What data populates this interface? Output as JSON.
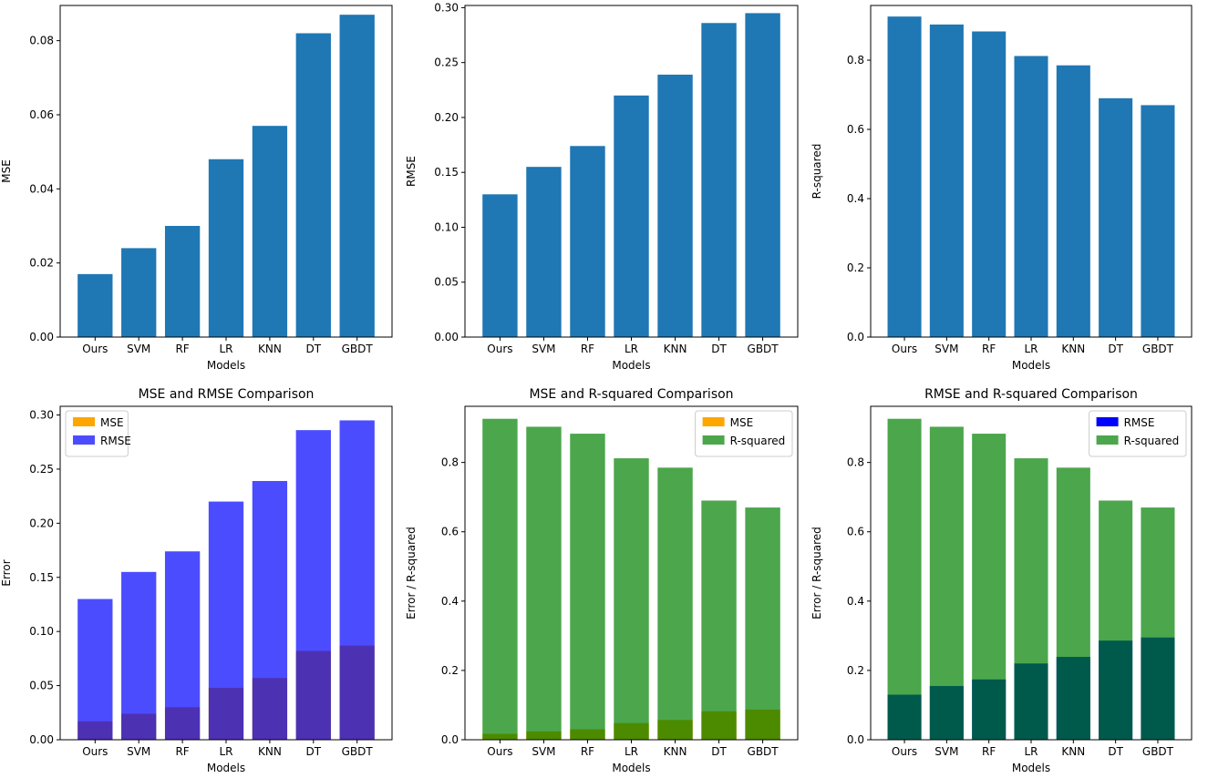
{
  "chart_data": [
    {
      "type": "bar",
      "title": "",
      "xlabel": "Models",
      "ylabel": "MSE",
      "categories": [
        "Ours",
        "SVM",
        "RF",
        "LR",
        "KNN",
        "DT",
        "GBDT"
      ],
      "series": [
        {
          "name": "MSE",
          "values": [
            0.017,
            0.024,
            0.03,
            0.048,
            0.057,
            0.082,
            0.087
          ],
          "color": "#1f77b4",
          "alpha": 1.0
        }
      ],
      "ylim": [
        0,
        0.0895
      ],
      "yticks": [
        0,
        0.02,
        0.04,
        0.06,
        0.08
      ],
      "ytick_labels": [
        "0.00",
        "0.02",
        "0.04",
        "0.06",
        "0.08"
      ],
      "legend": []
    },
    {
      "type": "bar",
      "title": "",
      "xlabel": "Models",
      "ylabel": "RMSE",
      "categories": [
        "Ours",
        "SVM",
        "RF",
        "LR",
        "KNN",
        "DT",
        "GBDT"
      ],
      "series": [
        {
          "name": "RMSE",
          "values": [
            0.13,
            0.155,
            0.174,
            0.22,
            0.239,
            0.286,
            0.295
          ],
          "color": "#1f77b4",
          "alpha": 1.0
        }
      ],
      "ylim": [
        0,
        0.302
      ],
      "yticks": [
        0,
        0.05,
        0.1,
        0.15,
        0.2,
        0.25,
        0.3
      ],
      "ytick_labels": [
        "0.00",
        "0.05",
        "0.10",
        "0.15",
        "0.20",
        "0.25",
        "0.30"
      ],
      "legend": []
    },
    {
      "type": "bar",
      "title": "",
      "xlabel": "Models",
      "ylabel": "R-squared",
      "categories": [
        "Ours",
        "SVM",
        "RF",
        "LR",
        "KNN",
        "DT",
        "GBDT"
      ],
      "series": [
        {
          "name": "R-squared",
          "values": [
            0.926,
            0.903,
            0.883,
            0.812,
            0.785,
            0.69,
            0.67
          ],
          "color": "#1f77b4",
          "alpha": 1.0
        }
      ],
      "ylim": [
        0,
        0.958
      ],
      "yticks": [
        0,
        0.2,
        0.4,
        0.6,
        0.8
      ],
      "ytick_labels": [
        "0.0",
        "0.2",
        "0.4",
        "0.6",
        "0.8"
      ],
      "legend": []
    },
    {
      "type": "bar",
      "title": "MSE and RMSE Comparison",
      "xlabel": "Models",
      "ylabel": "Error",
      "categories": [
        "Ours",
        "SVM",
        "RF",
        "LR",
        "KNN",
        "DT",
        "GBDT"
      ],
      "series": [
        {
          "name": "MSE",
          "values": [
            0.017,
            0.024,
            0.03,
            0.048,
            0.057,
            0.082,
            0.087
          ],
          "color": "#ffa500",
          "alpha": 1.0
        },
        {
          "name": "RMSE",
          "values": [
            0.13,
            0.155,
            0.174,
            0.22,
            0.239,
            0.286,
            0.295
          ],
          "color": "#0000ff",
          "alpha": 0.7
        }
      ],
      "ylim": [
        0,
        0.308
      ],
      "yticks": [
        0,
        0.05,
        0.1,
        0.15,
        0.2,
        0.25,
        0.3
      ],
      "ytick_labels": [
        "0.00",
        "0.05",
        "0.10",
        "0.15",
        "0.20",
        "0.25",
        "0.30"
      ],
      "legend": [
        "MSE",
        "RMSE"
      ],
      "legend_loc": "upper-left"
    },
    {
      "type": "bar",
      "title": "MSE and R-squared Comparison",
      "xlabel": "Models",
      "ylabel": "Error / R-squared",
      "categories": [
        "Ours",
        "SVM",
        "RF",
        "LR",
        "KNN",
        "DT",
        "GBDT"
      ],
      "series": [
        {
          "name": "MSE",
          "values": [
            0.017,
            0.024,
            0.03,
            0.048,
            0.057,
            0.082,
            0.087
          ],
          "color": "#ffa500",
          "alpha": 1.0
        },
        {
          "name": "R-squared",
          "values": [
            0.926,
            0.903,
            0.883,
            0.812,
            0.785,
            0.69,
            0.67
          ],
          "color": "#008000",
          "alpha": 0.7
        }
      ],
      "ylim": [
        0,
        0.962
      ],
      "yticks": [
        0,
        0.2,
        0.4,
        0.6,
        0.8
      ],
      "ytick_labels": [
        "0.0",
        "0.2",
        "0.4",
        "0.6",
        "0.8"
      ],
      "legend": [
        "MSE",
        "R-squared"
      ],
      "legend_loc": "upper-right"
    },
    {
      "type": "bar",
      "title": "RMSE and R-squared Comparison",
      "xlabel": "Models",
      "ylabel": "Error / R-squared",
      "categories": [
        "Ours",
        "SVM",
        "RF",
        "LR",
        "KNN",
        "DT",
        "GBDT"
      ],
      "series": [
        {
          "name": "RMSE",
          "values": [
            0.13,
            0.155,
            0.174,
            0.22,
            0.239,
            0.286,
            0.295
          ],
          "color": "#0000ff",
          "alpha": 1.0
        },
        {
          "name": "R-squared",
          "values": [
            0.926,
            0.903,
            0.883,
            0.812,
            0.785,
            0.69,
            0.67
          ],
          "color": "#008000",
          "alpha": 0.7
        }
      ],
      "ylim": [
        0,
        0.962
      ],
      "yticks": [
        0,
        0.2,
        0.4,
        0.6,
        0.8
      ],
      "ytick_labels": [
        "0.0",
        "0.2",
        "0.4",
        "0.6",
        "0.8"
      ],
      "legend": [
        "RMSE",
        "R-squared"
      ],
      "legend_loc": "upper-right"
    }
  ]
}
